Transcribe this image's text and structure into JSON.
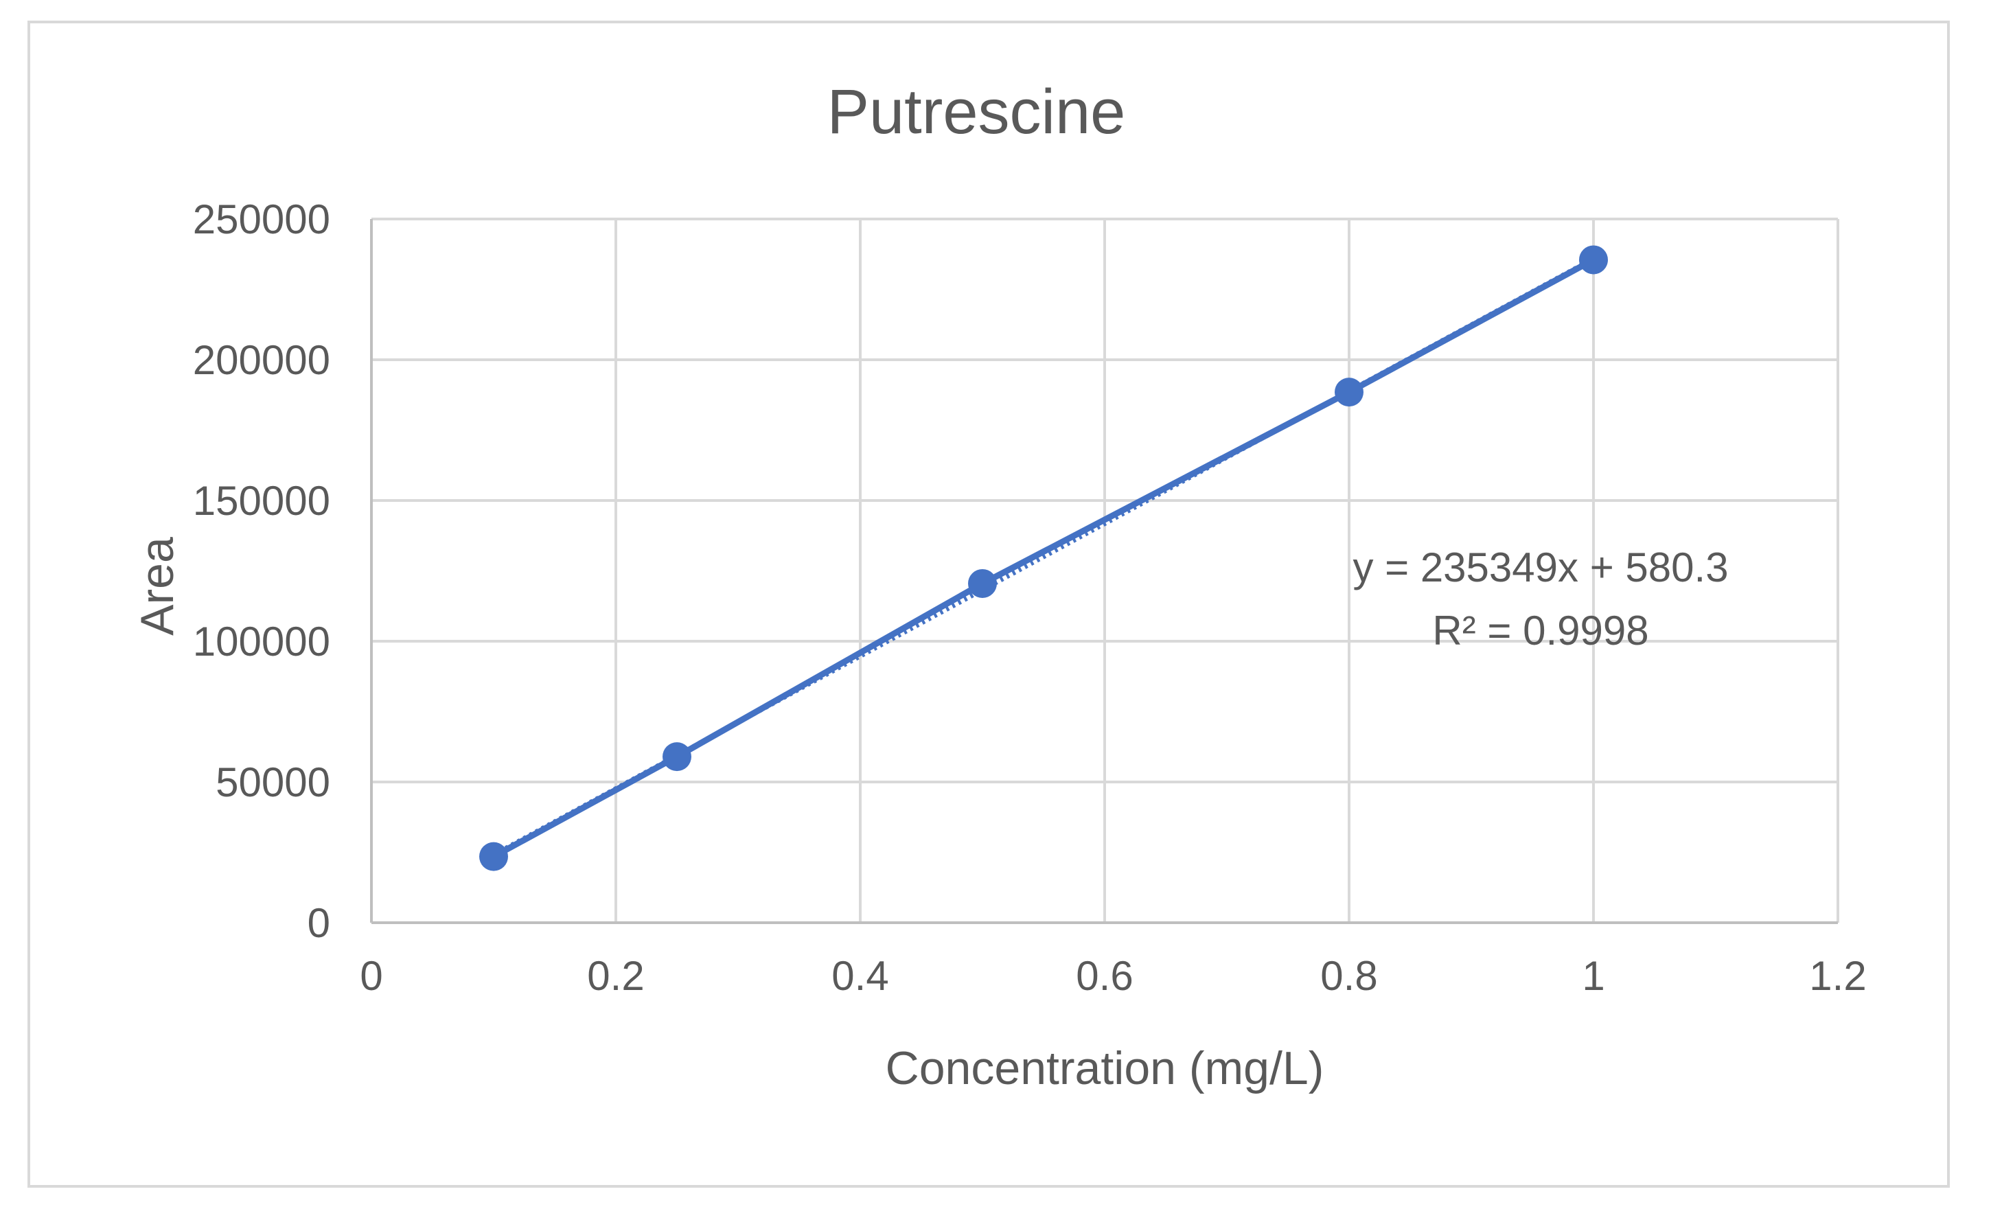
{
  "chart_data": {
    "type": "scatter",
    "title": "Putrescine",
    "xlabel": "Concentration (mg/L)",
    "ylabel": "Area",
    "xlim": [
      0,
      1.2
    ],
    "ylim": [
      0,
      250000
    ],
    "x_ticks": [
      "0",
      "0.2",
      "0.4",
      "0.6",
      "0.8",
      "1",
      "1.2"
    ],
    "y_ticks": [
      "0",
      "50000",
      "100000",
      "150000",
      "200000",
      "250000"
    ],
    "grid": true,
    "legend": "none",
    "series": [
      {
        "x": [
          0.1,
          0.25,
          0.5,
          0.8,
          1.0
        ],
        "y": [
          23500,
          59000,
          120500,
          188500,
          235500
        ],
        "color": "#4472c4",
        "line": "solid"
      }
    ],
    "trendline": {
      "type": "linear",
      "slope": 235349,
      "intercept": 580.3,
      "x_range": [
        0.1,
        1.0
      ],
      "color": "#4472c4",
      "line": "dotted"
    },
    "annotations": {
      "equation": "y = 235349x + 580.3",
      "r_squared": "R² = 0.9998"
    }
  }
}
